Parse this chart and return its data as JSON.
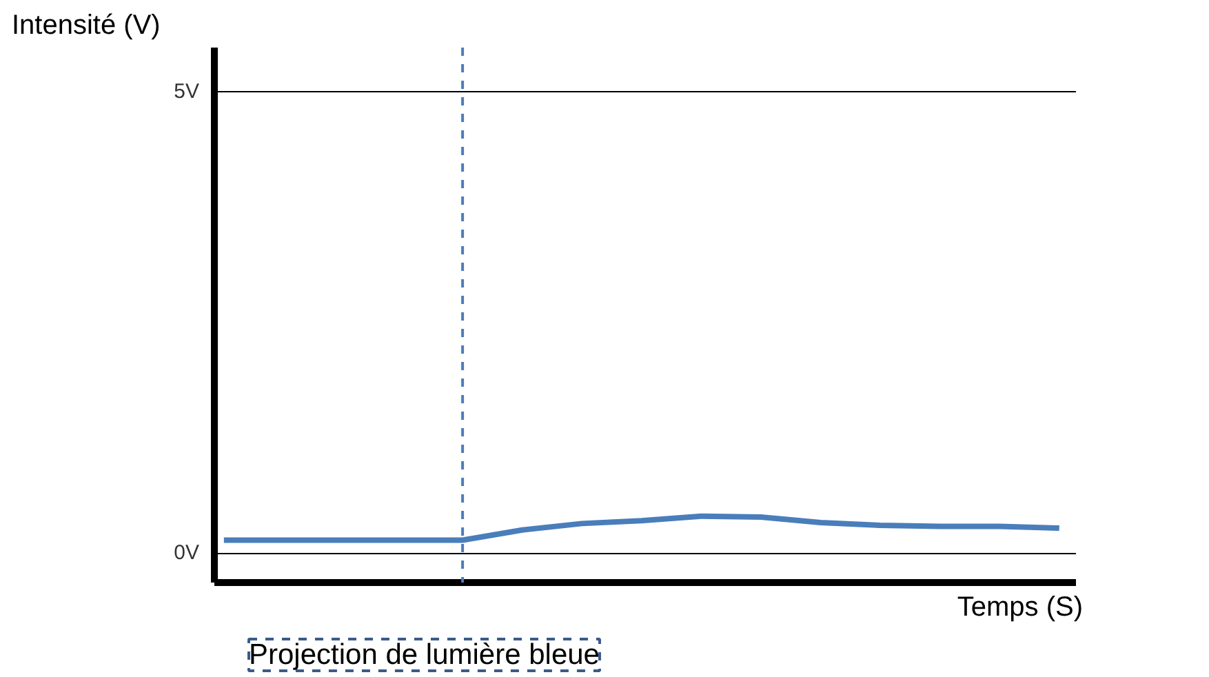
{
  "chart_data": {
    "type": "line",
    "xlabel": "Temps (S)",
    "ylabel": "Intensité (V)",
    "categories": [
      null,
      null,
      null,
      null,
      null,
      null,
      null,
      null,
      null,
      null,
      null,
      null,
      null,
      null,
      null
    ],
    "series": [
      {
        "color": "#4a7ebb",
        "values": [
          0.14,
          0.14,
          0.14,
          0.14,
          0.14,
          0.25,
          0.32,
          0.35,
          0.4,
          0.39,
          0.33,
          0.3,
          0.29,
          0.29,
          0.27
        ]
      }
    ],
    "ylim": [
      -0.32,
      5.48
    ],
    "yticks": [
      {
        "value": 0,
        "label": "0V"
      },
      {
        "value": 5,
        "label": "5V"
      }
    ],
    "grid": "y",
    "tick_labels": "y",
    "marker": "none",
    "line_style": "solid",
    "annotations": [
      "Projection de lumière bleue"
    ]
  }
}
